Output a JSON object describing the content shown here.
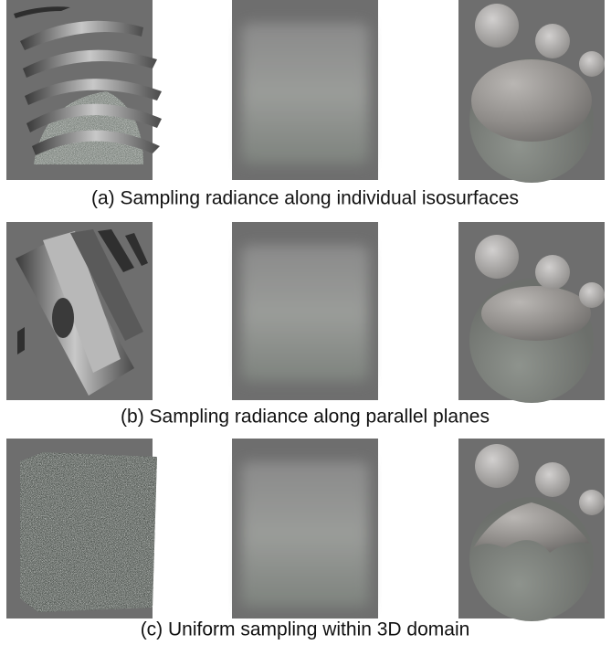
{
  "figure": {
    "captions": [
      "(a) Sampling radiance along individual isosurfaces",
      "(b) Sampling radiance along parallel planes",
      "(c) Uniform sampling within 3D domain"
    ]
  }
}
